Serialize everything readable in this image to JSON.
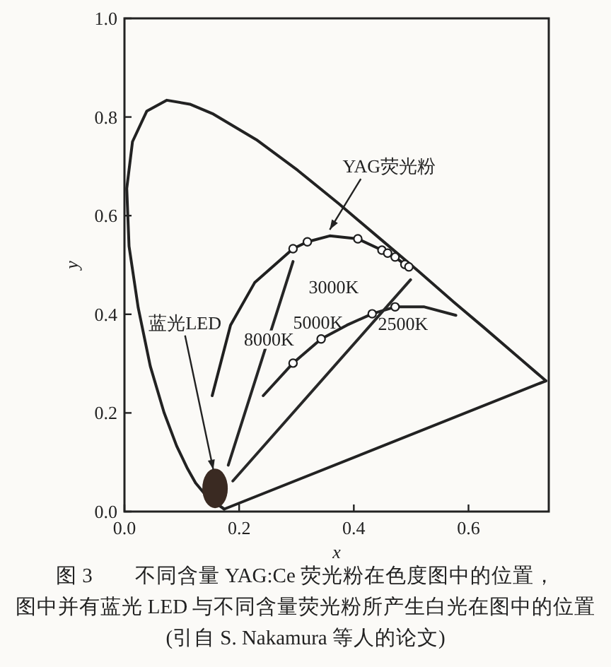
{
  "chart_data": {
    "type": "line",
    "xlabel": "x",
    "ylabel": "y",
    "xlim": [
      0,
      0.74
    ],
    "ylim": [
      0,
      1.0
    ],
    "xticks": [
      {
        "value": 0,
        "label": "0.0"
      },
      0.2,
      0.4,
      0.6
    ],
    "yticks": [
      {
        "value": 0,
        "label": "0.0"
      },
      0.2,
      0.4,
      0.6,
      0.8,
      {
        "value": 1,
        "label": "1.0"
      }
    ],
    "series": [
      {
        "type": "line",
        "color": "#222222",
        "x": [
          0.174,
          0.144,
          0.124,
          0.11,
          0.091,
          0.069,
          0.045,
          0.024,
          0.008,
          0.004,
          0.014,
          0.039,
          0.074,
          0.114,
          0.155,
          0.23,
          0.302,
          0.373,
          0.444,
          0.513,
          0.575,
          0.627,
          0.692,
          0.719,
          0.735
        ],
        "values": [
          0.005,
          0.03,
          0.058,
          0.087,
          0.133,
          0.201,
          0.295,
          0.413,
          0.538,
          0.655,
          0.75,
          0.812,
          0.834,
          0.826,
          0.806,
          0.754,
          0.692,
          0.625,
          0.555,
          0.487,
          0.424,
          0.373,
          0.308,
          0.281,
          0.265
        ]
      },
      {
        "type": "line",
        "color": "#222222",
        "x": [
          0.174,
          0.735
        ],
        "values": [
          0.005,
          0.265
        ]
      },
      {
        "type": "line",
        "color": "#202020",
        "x": [
          0.153,
          0.185,
          0.227,
          0.294,
          0.319,
          0.358,
          0.407,
          0.449,
          0.472,
          0.489,
          0.496
        ],
        "values": [
          0.235,
          0.378,
          0.464,
          0.533,
          0.547,
          0.559,
          0.553,
          0.53,
          0.516,
          0.501,
          0.496
        ]
      },
      {
        "type": "scatter",
        "color": "#1e1e1e",
        "marker": "circle",
        "x": [
          0.294,
          0.319,
          0.407,
          0.449,
          0.459,
          0.472,
          0.489,
          0.496
        ],
        "values": [
          0.533,
          0.547,
          0.553,
          0.53,
          0.524,
          0.516,
          0.501,
          0.496
        ]
      },
      {
        "type": "line",
        "color": "#242424",
        "x": [
          0.242,
          0.294,
          0.343,
          0.388,
          0.432,
          0.472,
          0.523,
          0.578
        ],
        "values": [
          0.235,
          0.301,
          0.35,
          0.378,
          0.401,
          0.415,
          0.415,
          0.398
        ]
      },
      {
        "type": "scatter",
        "color": "#1c1c1c",
        "marker": "circle",
        "x": [
          0.294,
          0.343,
          0.432,
          0.472
        ],
        "values": [
          0.301,
          0.35,
          0.401,
          0.415
        ]
      },
      {
        "type": "line",
        "color": "#262626",
        "x": [
          0.181,
          0.294
        ],
        "values": [
          0.094,
          0.507
        ]
      },
      {
        "type": "line",
        "color": "#282828",
        "x": [
          0.189,
          0.499
        ],
        "values": [
          0.062,
          0.47
        ]
      },
      {
        "type": "bubble",
        "color": "#3a2a22",
        "x": [
          0.158
        ],
        "values": [
          0.047
        ],
        "sizes": [
          1
        ]
      }
    ],
    "annotations": [
      {
        "text": "YAG荧光粉",
        "x": 0.358,
        "y": 0.56
      },
      {
        "text": "蓝光LED",
        "x": 0.155,
        "y": 0.085
      },
      "3000K",
      {
        "text": "8000K",
        "x": 0.252,
        "y": 0.35
      },
      "5000K",
      "2500K",
      "图 3　　不同含量 YAG:Ce 荧光粉在色度图中的位置，",
      "图中并有蓝光 LED 与不同含量荧光粉所产生白光在图中的位置",
      "(引自 S. Nakamura 等人的论文)"
    ]
  }
}
